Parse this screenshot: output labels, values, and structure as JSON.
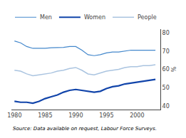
{
  "chart_data": {
    "type": "line",
    "ylabel": "%",
    "annotations": [
      "Source: Data available on request, Labour Force Surveys."
    ],
    "x": [
      1980,
      1981,
      1982,
      1983,
      1984,
      1985,
      1986,
      1987,
      1988,
      1989,
      1990,
      1991,
      1992,
      1993,
      1994,
      1995,
      1996,
      1997,
      1998,
      1999,
      2000,
      2001,
      2002,
      2003
    ],
    "series": [
      {
        "name": "Men",
        "color": "#4488cc",
        "values": [
          75.5,
          74.5,
          72.5,
          71.5,
          71.5,
          71.5,
          71.8,
          72.0,
          72.0,
          72.5,
          72.5,
          70.5,
          68.0,
          67.5,
          68.0,
          69.0,
          69.5,
          69.5,
          70.0,
          70.5,
          70.5,
          70.5,
          70.5,
          70.5
        ]
      },
      {
        "name": "Women",
        "color": "#1144aa",
        "values": [
          42.5,
          42.0,
          42.0,
          41.5,
          42.5,
          44.0,
          45.0,
          46.0,
          47.5,
          48.5,
          49.0,
          48.5,
          48.0,
          47.5,
          48.0,
          49.5,
          50.5,
          51.0,
          52.0,
          52.5,
          53.0,
          53.5,
          54.0,
          54.5
        ]
      },
      {
        "name": "People",
        "color": "#aac4e0",
        "values": [
          59.5,
          59.0,
          57.5,
          56.5,
          57.0,
          57.5,
          58.0,
          59.0,
          59.5,
          60.5,
          61.0,
          59.5,
          57.5,
          57.0,
          58.0,
          59.0,
          59.5,
          60.0,
          61.0,
          61.5,
          61.5,
          62.0,
          62.0,
          62.5
        ]
      }
    ],
    "xlim": [
      1979.5,
      2003.8
    ],
    "xticks": [
      1980,
      1985,
      1990,
      1995,
      2000
    ],
    "ylim": [
      38,
      82
    ],
    "yticks": [
      40,
      50,
      60,
      70,
      80
    ],
    "grid": false,
    "legend": "upper right"
  }
}
